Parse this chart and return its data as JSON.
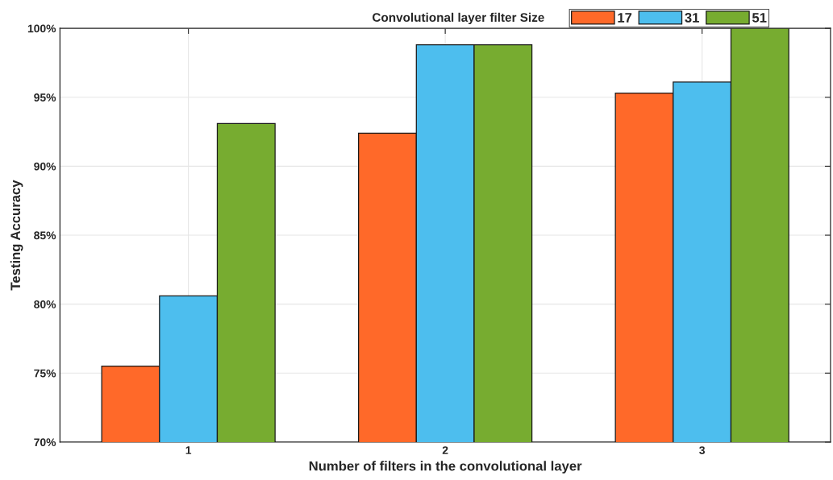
{
  "chart_data": {
    "type": "bar",
    "xlabel": "Number of filters in the convolutional layer",
    "ylabel": "Testing Accuracy",
    "legend_title": "Convolutional layer filter Size",
    "categories": [
      "1",
      "2",
      "3"
    ],
    "series": [
      {
        "name": "17",
        "color": "#ff6929",
        "values": [
          75.5,
          92.4,
          95.3
        ]
      },
      {
        "name": "31",
        "color": "#4dbeee",
        "values": [
          80.6,
          98.8,
          96.1
        ]
      },
      {
        "name": "51",
        "color": "#77ac30",
        "values": [
          93.1,
          98.8,
          100
        ]
      }
    ],
    "ylim": [
      70,
      100
    ],
    "yticks": [
      {
        "value": 70,
        "label": "70%"
      },
      {
        "value": 75,
        "label": "75%"
      },
      {
        "value": 80,
        "label": "80%"
      },
      {
        "value": 85,
        "label": "85%"
      },
      {
        "value": 90,
        "label": "90%"
      },
      {
        "value": 95,
        "label": "95%"
      },
      {
        "value": 100,
        "label": "100%"
      }
    ],
    "grid": true,
    "legend": "top right"
  }
}
